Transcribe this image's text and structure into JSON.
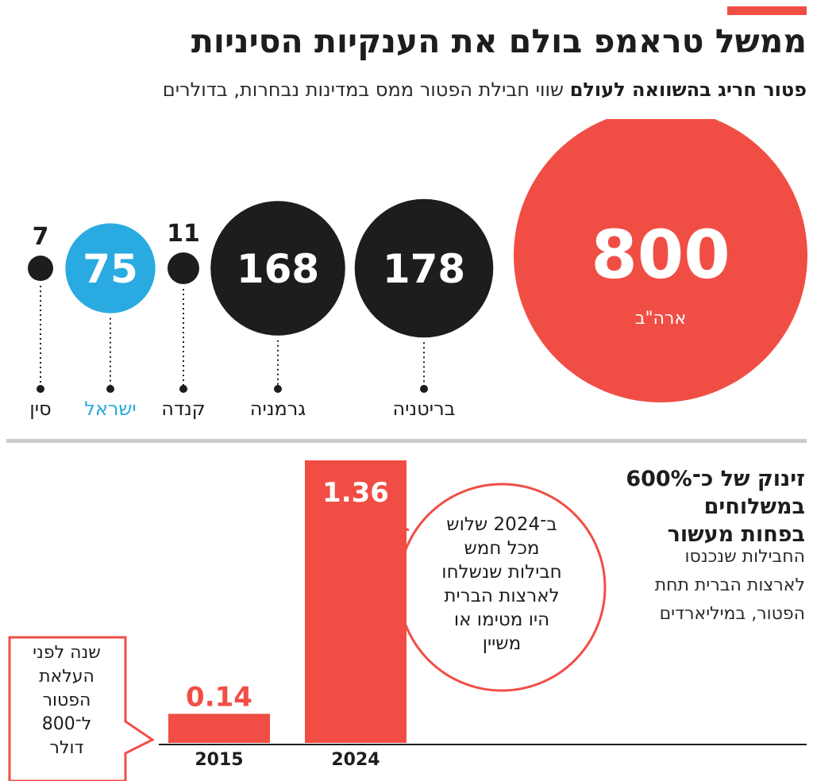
{
  "title": "ממשל טראמפ בולם את הענקיות הסיניות",
  "subtitle": {
    "bold": "פטור חריג בהשוואה לעולם",
    "light": " שווי חבילת הפטור ממס במדינות נבחרות, בדולרים"
  },
  "colors": {
    "accent": "#f04e45",
    "black": "#1d1d1b",
    "israel": "#29aae1",
    "divider": "#cccccc"
  },
  "chart_data": [
    {
      "type": "bubble",
      "title": "פטור חריג בהשוואה לעולם",
      "unit": "דולרים",
      "categories": [
        "ארה\"ב",
        "בריטניה",
        "גרמניה",
        "קנדה",
        "ישראל",
        "סין"
      ],
      "values": [
        800,
        178,
        168,
        11,
        75,
        7
      ],
      "value_labels": [
        "800",
        "178",
        "168",
        "11",
        "75",
        "7"
      ],
      "colors": [
        "#f04e45",
        "#1d1d1b",
        "#1d1d1b",
        "#1d1d1b",
        "#29aae1",
        "#1d1d1b"
      ]
    },
    {
      "type": "bar",
      "title": "זינוק של כ־600% במשלוחים בפחות מעשור",
      "ylabel": "במיליארדים",
      "categories": [
        "2015",
        "2024"
      ],
      "values": [
        0.14,
        1.36
      ],
      "value_labels": [
        "0.14",
        "1.36"
      ],
      "ylim": [
        0,
        1.36
      ]
    }
  ],
  "bar_panel": {
    "headline": "זינוק של כ־600%\nבמשלוחים\nבפחות מעשור",
    "body": "החבילות שנכנסו\nלארצות הברית תחת\nהפטור, במיליארדים",
    "callout": "ב־2024 שלוש\nמכל חמש\nחבילות שנשלחו\nלארצות הברית\nהיו מטימו או\nמשיין",
    "note": "שנה לפני\nהעלאת\nהפטור\nל־800\nדולר"
  }
}
